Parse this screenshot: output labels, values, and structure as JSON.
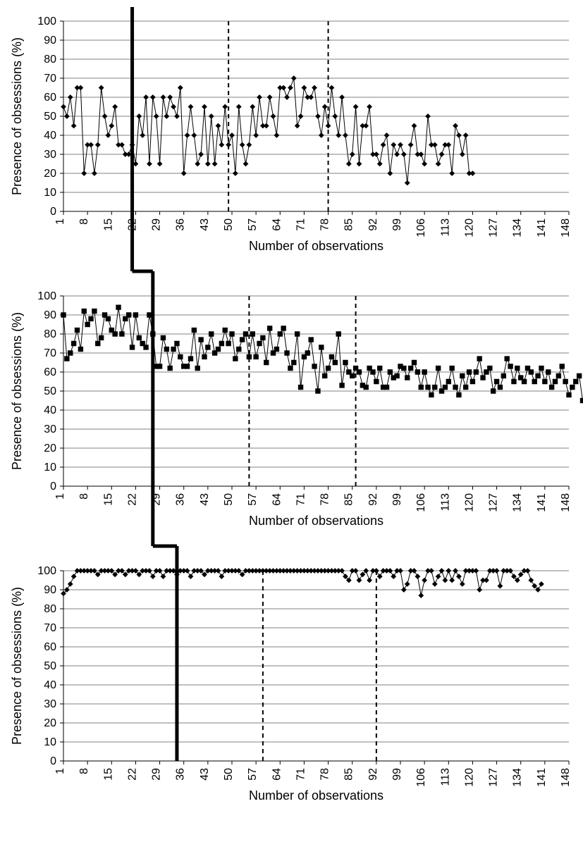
{
  "figure": {
    "background_color": "#ffffff",
    "line_color": "#000000",
    "marker_color": "#000000",
    "grid_color": "#808080",
    "dashed_color": "#000000",
    "solid_vline_color": "#000000",
    "axis_fontsize": 16,
    "label_fontsize": 18
  },
  "panels": [
    {
      "ylabel": "Presence of obsessions (%)",
      "xlabel": "Number of observations",
      "ylim": [
        0,
        100
      ],
      "ytick_step": 10,
      "xlim": [
        1,
        148
      ],
      "xtick_step": 7,
      "marker": "diamond",
      "marker_size": 3.2,
      "line_width": 1,
      "solid_vline_x": 21,
      "solid_vline_width": 5,
      "dashed_vlines_x": [
        49,
        78
      ],
      "values": [
        55,
        50,
        60,
        45,
        65,
        65,
        20,
        35,
        35,
        20,
        35,
        65,
        50,
        40,
        45,
        55,
        35,
        35,
        30,
        30,
        35,
        25,
        50,
        40,
        60,
        25,
        60,
        50,
        25,
        60,
        50,
        60,
        55,
        50,
        65,
        20,
        40,
        55,
        40,
        25,
        30,
        55,
        25,
        50,
        25,
        45,
        35,
        55,
        35,
        40,
        20,
        55,
        35,
        25,
        35,
        55,
        40,
        60,
        45,
        45,
        60,
        50,
        40,
        65,
        65,
        60,
        65,
        70,
        45,
        50,
        65,
        60,
        60,
        65,
        50,
        40,
        55,
        45,
        65,
        50,
        40,
        60,
        40,
        25,
        30,
        55,
        25,
        45,
        45,
        55,
        30,
        30,
        25,
        35,
        40,
        20,
        35,
        30,
        35,
        30,
        15,
        35,
        45,
        30,
        30,
        25,
        50,
        35,
        35,
        25,
        30,
        35,
        35,
        20,
        45,
        40,
        30,
        40,
        20,
        20
      ]
    },
    {
      "ylabel": "Presence of obsessions (%)",
      "xlabel": "Number of observations",
      "ylim": [
        0,
        100
      ],
      "ytick_step": 10,
      "xlim": [
        1,
        148
      ],
      "xtick_step": 7,
      "marker": "square",
      "marker_size": 3.2,
      "line_width": 1,
      "solid_vline_x": 27,
      "solid_vline_width": 5,
      "dashed_vlines_x": [
        55,
        86
      ],
      "values": [
        90,
        67,
        70,
        75,
        82,
        72,
        92,
        85,
        88,
        92,
        75,
        78,
        90,
        88,
        82,
        80,
        94,
        80,
        88,
        90,
        73,
        90,
        78,
        75,
        73,
        90,
        80,
        63,
        63,
        78,
        72,
        62,
        72,
        75,
        68,
        63,
        63,
        67,
        82,
        62,
        77,
        68,
        73,
        80,
        70,
        72,
        75,
        82,
        75,
        80,
        67,
        72,
        77,
        80,
        68,
        80,
        68,
        75,
        78,
        65,
        83,
        70,
        72,
        80,
        83,
        70,
        62,
        65,
        80,
        52,
        68,
        70,
        77,
        63,
        50,
        73,
        58,
        62,
        68,
        65,
        80,
        53,
        65,
        60,
        58,
        62,
        60,
        53,
        52,
        62,
        60,
        55,
        62,
        52,
        52,
        60,
        57,
        58,
        63,
        62,
        57,
        62,
        65,
        60,
        52,
        60,
        52,
        48,
        52,
        62,
        50,
        52,
        55,
        62,
        52,
        48,
        58,
        52,
        60,
        55,
        60,
        67,
        57,
        60,
        62,
        50,
        55,
        52,
        58,
        67,
        63,
        55,
        62,
        57,
        55,
        62,
        60,
        55,
        58,
        62,
        55,
        60,
        52,
        55,
        58,
        63,
        55,
        48,
        52,
        55,
        58,
        45
      ]
    },
    {
      "ylabel": "Presence of obsessions (%)",
      "xlabel": "Number of observations",
      "ylim": [
        0,
        100
      ],
      "ytick_step": 10,
      "xlim": [
        1,
        148
      ],
      "xtick_step": 7,
      "marker": "diamond",
      "marker_size": 3.2,
      "line_width": 1,
      "solid_vline_x": 34,
      "solid_vline_width": 5,
      "dashed_vlines_x": [
        59,
        92
      ],
      "values": [
        88,
        90,
        93,
        97,
        100,
        100,
        100,
        100,
        100,
        100,
        98,
        100,
        100,
        100,
        100,
        98,
        100,
        100,
        98,
        100,
        100,
        100,
        98,
        100,
        100,
        100,
        97,
        100,
        100,
        97,
        100,
        100,
        100,
        98,
        100,
        100,
        100,
        97,
        100,
        100,
        100,
        98,
        100,
        100,
        100,
        100,
        97,
        100,
        100,
        100,
        100,
        100,
        98,
        100,
        100,
        100,
        100,
        100,
        100,
        100,
        100,
        100,
        100,
        100,
        100,
        100,
        100,
        100,
        100,
        100,
        100,
        100,
        100,
        100,
        100,
        100,
        100,
        100,
        100,
        100,
        100,
        100,
        97,
        95,
        100,
        100,
        95,
        98,
        100,
        95,
        100,
        100,
        97,
        100,
        100,
        100,
        97,
        100,
        100,
        90,
        93,
        100,
        100,
        97,
        87,
        95,
        100,
        100,
        93,
        97,
        100,
        95,
        100,
        95,
        100,
        97,
        93,
        100,
        100,
        100,
        100,
        90,
        95,
        95,
        100,
        100,
        100,
        92,
        100,
        100,
        100,
        97,
        95,
        98,
        100,
        100,
        95,
        92,
        90,
        93
      ]
    }
  ]
}
